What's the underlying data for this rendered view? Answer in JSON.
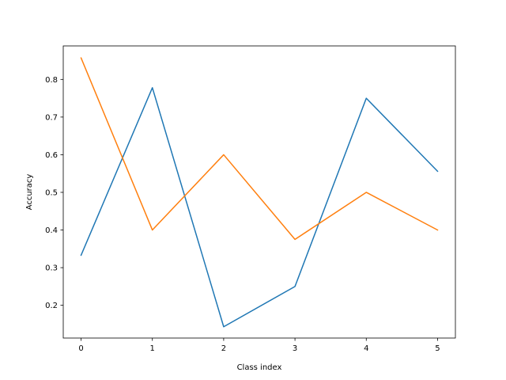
{
  "chart_data": {
    "type": "line",
    "title": "",
    "xlabel": "Class index",
    "ylabel": "Accuracy",
    "x": [
      0,
      1,
      2,
      3,
      4,
      5
    ],
    "xlim": [
      -0.25,
      5.25
    ],
    "ylim": [
      0.113,
      0.889
    ],
    "xticks": [
      0,
      1,
      2,
      3,
      4,
      5
    ],
    "yticks": [
      0.2,
      0.3,
      0.4,
      0.5,
      0.6,
      0.7,
      0.8
    ],
    "grid": false,
    "legend": "none",
    "series": [
      {
        "color": "#1f77b4",
        "values": [
          0.333,
          0.778,
          0.143,
          0.25,
          0.75,
          0.556
        ]
      },
      {
        "color": "#ff7f0e",
        "values": [
          0.857,
          0.4,
          0.6,
          0.375,
          0.5,
          0.4
        ]
      }
    ]
  }
}
